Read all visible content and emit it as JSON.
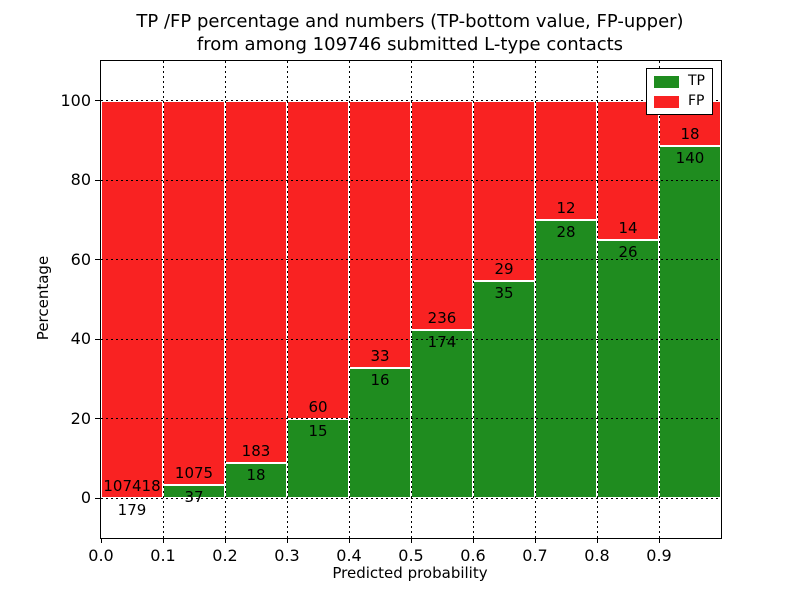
{
  "chart_data": {
    "type": "bar",
    "stacked": true,
    "normalized_to_percent": true,
    "title_line1": "TP /FP percentage and numbers (TP-bottom value, FP-upper)",
    "title_line2": "from among 109746 submitted L-type contacts",
    "xlabel": "Predicted probability",
    "ylabel": "Percentage",
    "total_contacts": 109746,
    "bin_width": 0.1,
    "categories": [
      "0.0",
      "0.1",
      "0.2",
      "0.3",
      "0.4",
      "0.5",
      "0.6",
      "0.7",
      "0.8",
      "0.9"
    ],
    "series": [
      {
        "name": "TP",
        "color": "#1f8c1f",
        "values": [
          179,
          37,
          18,
          15,
          16,
          174,
          35,
          28,
          26,
          140
        ]
      },
      {
        "name": "FP",
        "color": "#f92222",
        "values": [
          107418,
          1075,
          183,
          60,
          33,
          236,
          29,
          12,
          14,
          18
        ]
      }
    ],
    "annotation_note": "TP count printed below segment boundary, FP count above it",
    "x_ticks": [
      "0.0",
      "0.1",
      "0.2",
      "0.3",
      "0.4",
      "0.5",
      "0.6",
      "0.7",
      "0.8",
      "0.9"
    ],
    "y_ticks": [
      0,
      20,
      40,
      60,
      80,
      100
    ],
    "xlim": [
      0.0,
      1.0
    ],
    "ylim": [
      -10,
      110
    ],
    "grid": "dotted",
    "grid_color": "#000000",
    "bar_edge_color": "#ffffff",
    "text_color": "#000000",
    "legend_position": "upper right"
  }
}
